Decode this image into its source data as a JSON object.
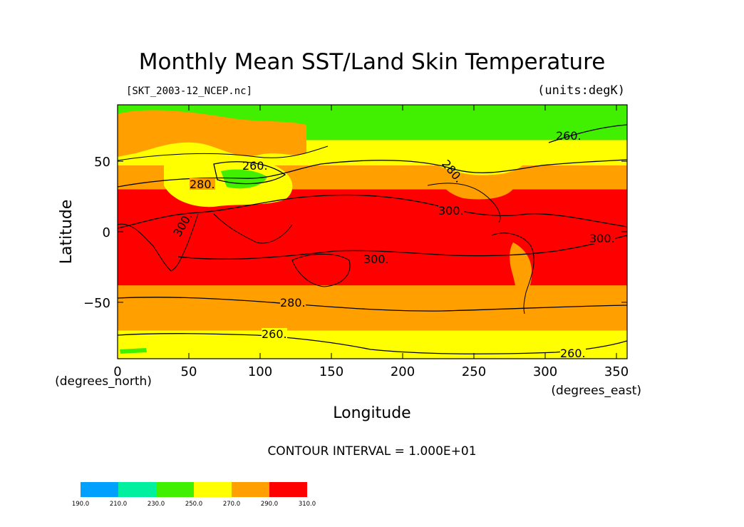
{
  "chart_data": {
    "type": "heatmap",
    "title": "Monthly Mean SST/Land Skin Temperature",
    "subtitle_left": "[SKT_2003-12_NCEP.nc]",
    "subtitle_right": "(units:degK)",
    "xlabel": "Longitude",
    "ylabel": "Latitude",
    "x_unit_label": "(degrees_east)",
    "y_unit_label": "(degrees_north)",
    "xlim": [
      0,
      357.5
    ],
    "ylim": [
      -90,
      90
    ],
    "x_ticks": [
      0,
      50,
      100,
      150,
      200,
      250,
      300,
      350
    ],
    "y_ticks": [
      -50,
      0,
      50
    ],
    "contour_interval_text": "CONTOUR INTERVAL = 1.000E+01",
    "contour_labels": [
      "260.",
      "280.",
      "300."
    ],
    "colorbar": {
      "levels": [
        "190.0",
        "210.0",
        "230.0",
        "250.0",
        "270.0",
        "290.0",
        "310.0"
      ],
      "colors": [
        "#00a0ff",
        "#00f0a0",
        "#40f000",
        "#ffff00",
        "#ffa000",
        "#ff0000"
      ]
    },
    "zonal_bands": [
      {
        "lat_min": 65,
        "lat_max": 90,
        "range": "230-250"
      },
      {
        "lat_min": 47,
        "lat_max": 65,
        "range": "250-270"
      },
      {
        "lat_min": 30,
        "lat_max": 47,
        "range": "270-290"
      },
      {
        "lat_min": -38,
        "lat_max": 30,
        "range": "290-310"
      },
      {
        "lat_min": -70,
        "lat_max": -38,
        "range": "270-290"
      },
      {
        "lat_min": -90,
        "lat_max": -70,
        "range": "250-270"
      }
    ],
    "grid": false
  },
  "colors": {
    "background": "#ffffff",
    "axis": "#000000"
  }
}
